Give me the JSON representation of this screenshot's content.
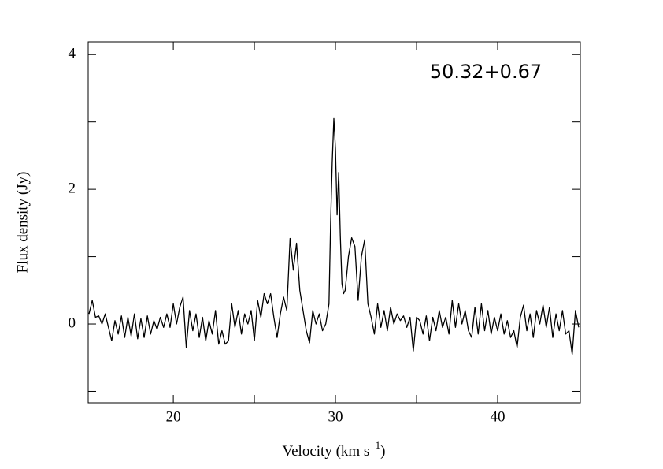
{
  "chart_data": {
    "type": "line",
    "xlabel": {
      "text": "Velocity (km s",
      "sup": "−1",
      "close": ")"
    },
    "ylabel": "Flux density (Jy)",
    "annotation": "50.32+0.67",
    "color": "#000000",
    "xlim": [
      14.75,
      45.1
    ],
    "ylim": [
      -1.17,
      4.19
    ],
    "xticks": [
      20,
      30,
      40
    ],
    "yticks": [
      0,
      2,
      4
    ],
    "xminorticks": [
      25,
      35
    ],
    "yminorticks": [
      -1,
      1,
      3
    ],
    "x": [
      14.8,
      15.0,
      15.2,
      15.4,
      15.6,
      15.8,
      16.0,
      16.2,
      16.4,
      16.6,
      16.8,
      17.0,
      17.2,
      17.4,
      17.6,
      17.8,
      18.0,
      18.2,
      18.4,
      18.6,
      18.8,
      19.0,
      19.2,
      19.4,
      19.6,
      19.8,
      20.0,
      20.2,
      20.4,
      20.6,
      20.8,
      21.0,
      21.2,
      21.4,
      21.6,
      21.8,
      22.0,
      22.2,
      22.4,
      22.6,
      22.8,
      23.0,
      23.2,
      23.4,
      23.6,
      23.8,
      24.0,
      24.2,
      24.4,
      24.6,
      24.8,
      25.0,
      25.2,
      25.4,
      25.6,
      25.8,
      26.0,
      26.2,
      26.4,
      26.6,
      26.8,
      27.0,
      27.2,
      27.4,
      27.6,
      27.8,
      28.0,
      28.2,
      28.4,
      28.6,
      28.8,
      29.0,
      29.2,
      29.4,
      29.6,
      29.7,
      29.8,
      29.9,
      30.0,
      30.1,
      30.2,
      30.3,
      30.4,
      30.5,
      30.6,
      30.8,
      31.0,
      31.2,
      31.4,
      31.6,
      31.8,
      32.0,
      32.2,
      32.4,
      32.6,
      32.8,
      33.0,
      33.2,
      33.4,
      33.6,
      33.8,
      34.0,
      34.2,
      34.4,
      34.6,
      34.8,
      35.0,
      35.2,
      35.4,
      35.6,
      35.8,
      36.0,
      36.2,
      36.4,
      36.6,
      36.8,
      37.0,
      37.2,
      37.4,
      37.6,
      37.8,
      38.0,
      38.2,
      38.4,
      38.6,
      38.8,
      39.0,
      39.2,
      39.4,
      39.6,
      39.8,
      40.0,
      40.2,
      40.4,
      40.6,
      40.8,
      41.0,
      41.2,
      41.4,
      41.6,
      41.8,
      42.0,
      42.2,
      42.4,
      42.6,
      42.8,
      43.0,
      43.2,
      43.4,
      43.6,
      43.8,
      44.0,
      44.2,
      44.4,
      44.6,
      44.8,
      45.0
    ],
    "values": [
      0.15,
      0.35,
      0.1,
      0.12,
      0.0,
      0.15,
      -0.05,
      -0.25,
      0.05,
      -0.15,
      0.12,
      -0.2,
      0.1,
      -0.18,
      0.15,
      -0.22,
      0.08,
      -0.2,
      0.12,
      -0.15,
      0.05,
      -0.08,
      0.1,
      -0.05,
      0.15,
      -0.05,
      0.3,
      0.0,
      0.25,
      0.4,
      -0.35,
      0.2,
      -0.1,
      0.15,
      -0.2,
      0.1,
      -0.25,
      0.05,
      -0.15,
      0.2,
      -0.3,
      -0.1,
      -0.3,
      -0.25,
      0.3,
      -0.05,
      0.2,
      -0.15,
      0.15,
      0.0,
      0.2,
      -0.25,
      0.35,
      0.1,
      0.45,
      0.3,
      0.45,
      0.1,
      -0.2,
      0.15,
      0.4,
      0.2,
      1.27,
      0.8,
      1.2,
      0.5,
      0.2,
      -0.1,
      -0.28,
      0.2,
      0.0,
      0.15,
      -0.1,
      0.0,
      0.3,
      1.5,
      2.4,
      3.05,
      2.6,
      1.62,
      2.25,
      1.3,
      0.6,
      0.45,
      0.5,
      1.0,
      1.28,
      1.15,
      0.35,
      1.0,
      1.25,
      0.3,
      0.1,
      -0.15,
      0.3,
      -0.05,
      0.2,
      -0.1,
      0.25,
      0.0,
      0.15,
      0.05,
      0.12,
      -0.05,
      0.1,
      -0.4,
      0.1,
      0.05,
      -0.15,
      0.12,
      -0.25,
      0.1,
      -0.1,
      0.2,
      -0.05,
      0.1,
      -0.15,
      0.35,
      -0.05,
      0.3,
      0.0,
      0.2,
      -0.1,
      -0.2,
      0.25,
      -0.15,
      0.3,
      -0.1,
      0.2,
      -0.15,
      0.1,
      -0.1,
      0.15,
      -0.15,
      0.05,
      -0.2,
      -0.1,
      -0.35,
      0.1,
      0.28,
      -0.1,
      0.15,
      -0.2,
      0.2,
      0.0,
      0.28,
      -0.05,
      0.25,
      -0.2,
      0.15,
      -0.1,
      0.2,
      -0.15,
      -0.1,
      -0.45,
      0.2,
      -0.05
    ]
  }
}
